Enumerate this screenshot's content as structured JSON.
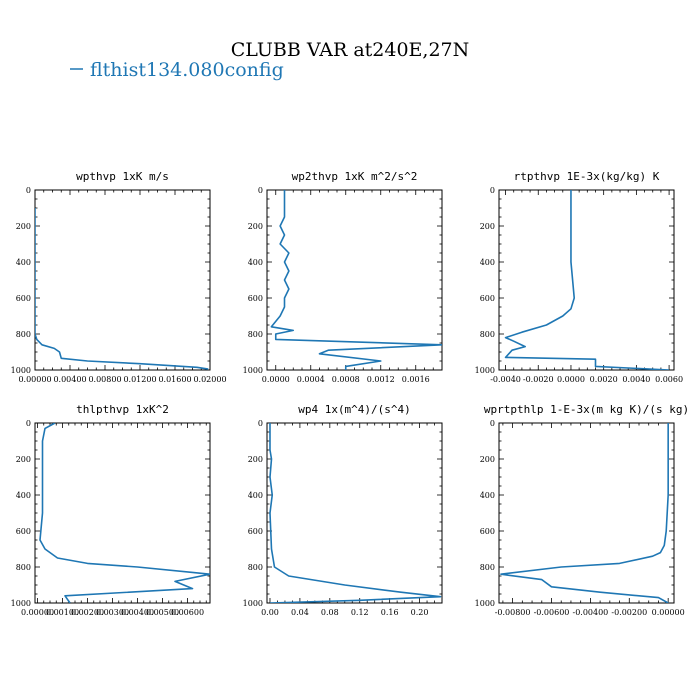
{
  "title": "CLUBB VAR at240E,27N",
  "legend": {
    "label": "flthist134.080config",
    "color": "#1f77b4"
  },
  "line_color": "#1f77b4",
  "chart_data": [
    {
      "type": "line",
      "title": "wpthvp  1xK m/s",
      "xlim": [
        0,
        0.02
      ],
      "ylim": [
        1000,
        0
      ],
      "xticks": [
        "0.00000",
        "0.00400",
        "0.00800",
        "0.01200",
        "0.01600",
        "0.02000"
      ],
      "yticks": [
        "0",
        "200",
        "400",
        "600",
        "800",
        "1000"
      ],
      "series": [
        {
          "name": "flthist134.080config",
          "x": [
            0,
            0,
            0.0002,
            0.0008,
            0.0022,
            0.0028,
            0.003,
            0.006,
            0.012,
            0.0185,
            0.0198
          ],
          "y": [
            100,
            800,
            830,
            860,
            880,
            900,
            935,
            950,
            965,
            985,
            995
          ]
        }
      ]
    },
    {
      "type": "line",
      "title": "wp2thvp  1xK m^2/s^2",
      "xlim": [
        -0.0001,
        0.0019
      ],
      "ylim": [
        1000,
        0
      ],
      "xticks": [
        "0.0000",
        "0.0004",
        "0.0008",
        "0.0012",
        "0.0016"
      ],
      "yticks": [
        "0",
        "200",
        "400",
        "600",
        "800",
        "1000"
      ],
      "series": [
        {
          "name": "flthist134.080config",
          "x": [
            0.0001,
            0.0001,
            5e-05,
            0.0001,
            5e-05,
            0.00015,
            0.0001,
            0.00015,
            0.0001,
            0.00015,
            0.0001,
            0.0001,
            5e-05,
            0.0,
            -5e-05,
            0.0002,
            0.0,
            0.0,
            0.0019,
            0.0006,
            0.0005,
            0.0012,
            0.0008,
            0.0008
          ],
          "y": [
            0,
            150,
            200,
            250,
            300,
            350,
            400,
            450,
            500,
            550,
            600,
            650,
            700,
            730,
            760,
            780,
            800,
            830,
            860,
            890,
            910,
            950,
            980,
            1000
          ]
        }
      ]
    },
    {
      "type": "line",
      "title": "rtpthvp  1E-3x(kg/kg) K",
      "xlim": [
        -0.0044,
        0.0063
      ],
      "ylim": [
        1000,
        0
      ],
      "xticks": [
        "-0.0040",
        "-0.0020",
        "0.0000",
        "0.0020",
        "0.0040",
        "0.0060"
      ],
      "yticks": [
        "0",
        "200",
        "400",
        "600",
        "800",
        "1000"
      ],
      "series": [
        {
          "name": "flthist134.080config",
          "x": [
            0.0,
            0.0,
            0.0001,
            0.0002,
            0.0,
            -0.0005,
            -0.0015,
            -0.003,
            -0.004,
            -0.0035,
            -0.0028,
            -0.0036,
            -0.004,
            0.0015,
            0.0015,
            0.006
          ],
          "y": [
            0,
            400,
            500,
            600,
            660,
            700,
            750,
            790,
            820,
            840,
            870,
            890,
            930,
            940,
            980,
            1000
          ]
        }
      ]
    },
    {
      "type": "line",
      "title": "thlpthvp  1xK^2",
      "xlim": [
        -0.0001,
        0.0069
      ],
      "ylim": [
        1000,
        0
      ],
      "xticks": [
        "0.00000",
        "0.00100",
        "0.00200",
        "0.00300",
        "0.00400",
        "0.00500",
        "0.00600"
      ],
      "yticks": [
        "0",
        "200",
        "400",
        "600",
        "800",
        "1000"
      ],
      "series": [
        {
          "name": "flthist134.080config",
          "x": [
            0.0007,
            0.0003,
            0.0002,
            0.0002,
            0.0002,
            0.0001,
            0.0003,
            0.0008,
            0.002,
            0.004,
            0.0062,
            0.0069,
            0.0055,
            0.0062,
            0.0011,
            0.0013
          ],
          "y": [
            0,
            30,
            100,
            300,
            500,
            650,
            700,
            750,
            780,
            800,
            830,
            840,
            880,
            920,
            960,
            1000
          ]
        }
      ]
    },
    {
      "type": "line",
      "title": "wp4  1x(m^4)/(s^4)",
      "xlim": [
        -0.004,
        0.23
      ],
      "ylim": [
        1000,
        0
      ],
      "xticks": [
        "0.00",
        "0.04",
        "0.08",
        "0.12",
        "0.16",
        "0.20"
      ],
      "yticks": [
        "0",
        "200",
        "400",
        "600",
        "800",
        "1000"
      ],
      "series": [
        {
          "name": "flthist134.080config",
          "x": [
            0.0,
            0.0,
            0.002,
            0.0,
            0.003,
            0.0,
            0.002,
            0.006,
            0.025,
            0.1,
            0.175,
            0.228,
            0.12,
            0.0
          ],
          "y": [
            0,
            150,
            200,
            300,
            400,
            500,
            700,
            800,
            850,
            900,
            940,
            965,
            985,
            1000
          ]
        }
      ]
    },
    {
      "type": "line",
      "title": "wprtpthlp  1-E-3x(m kg K)/(s kg)",
      "xlim": [
        -0.0087,
        0.0003
      ],
      "ylim": [
        1000,
        0
      ],
      "xticks": [
        "-0.00800",
        "-0.00600",
        "-0.00400",
        "-0.00200",
        "0.00000"
      ],
      "yticks": [
        "0",
        "200",
        "400",
        "600",
        "800",
        "1000"
      ],
      "series": [
        {
          "name": "flthist134.080config",
          "x": [
            0.0,
            0.0,
            -0.0001,
            -0.0002,
            -0.0004,
            -0.0008,
            -0.0025,
            -0.0055,
            -0.0086,
            -0.0065,
            -0.006,
            -0.0035,
            -0.0005,
            0.0
          ],
          "y": [
            0,
            400,
            600,
            680,
            720,
            740,
            780,
            800,
            840,
            870,
            910,
            940,
            970,
            1000
          ]
        }
      ]
    }
  ]
}
